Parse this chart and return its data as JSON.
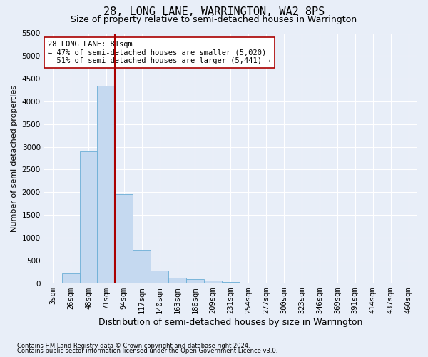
{
  "title": "28, LONG LANE, WARRINGTON, WA2 8PS",
  "subtitle": "Size of property relative to semi-detached houses in Warrington",
  "xlabel": "Distribution of semi-detached houses by size in Warrington",
  "ylabel": "Number of semi-detached properties",
  "footnote1": "Contains HM Land Registry data © Crown copyright and database right 2024.",
  "footnote2": "Contains public sector information licensed under the Open Government Licence v3.0.",
  "categories": [
    "3sqm",
    "26sqm",
    "48sqm",
    "71sqm",
    "94sqm",
    "117sqm",
    "140sqm",
    "163sqm",
    "186sqm",
    "209sqm",
    "231sqm",
    "254sqm",
    "277sqm",
    "300sqm",
    "323sqm",
    "346sqm",
    "369sqm",
    "391sqm",
    "414sqm",
    "437sqm",
    "460sqm"
  ],
  "values": [
    0,
    220,
    2900,
    4350,
    1950,
    730,
    280,
    120,
    90,
    55,
    30,
    15,
    10,
    5,
    3,
    2,
    1,
    1,
    0,
    0,
    0
  ],
  "bar_color": "#c5d9f0",
  "bar_edge_color": "#6baed6",
  "vline_index": 3.5,
  "vline_color": "#aa0000",
  "annotation_text": "28 LONG LANE: 81sqm\n← 47% of semi-detached houses are smaller (5,020)\n  51% of semi-detached houses are larger (5,441) →",
  "annotation_box_color": "white",
  "annotation_edge_color": "#aa0000",
  "ylim": [
    0,
    5500
  ],
  "yticks": [
    0,
    500,
    1000,
    1500,
    2000,
    2500,
    3000,
    3500,
    4000,
    4500,
    5000,
    5500
  ],
  "title_fontsize": 11,
  "subtitle_fontsize": 9,
  "xlabel_fontsize": 9,
  "ylabel_fontsize": 8,
  "tick_fontsize": 7.5,
  "annotation_fontsize": 7.5,
  "footnote_fontsize": 6,
  "background_color": "#e8eef8",
  "plot_bg_color": "#e8eef8"
}
